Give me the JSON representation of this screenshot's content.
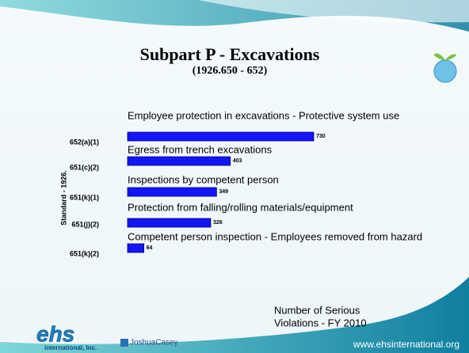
{
  "chart_data": {
    "type": "bar",
    "orientation": "horizontal",
    "title": "Subpart P - Excavations",
    "subtitle": "(1926.650 - 652)",
    "y_axis_label": "Standard - 1926.",
    "categories": [
      "652(a)(1)",
      "651(c)(2)",
      "651(k)(1)",
      "651(j)(2)",
      "651(k)(2)"
    ],
    "descriptions": [
      "Employee protection in excavations - Protective system use",
      "Egress from trench excavations",
      "Inspections by competent person",
      "Protection from falling/rolling materials/equipment",
      "Competent person inspection - Employees removed from hazard"
    ],
    "values": [
      730,
      403,
      349,
      326,
      64
    ],
    "color": "#1414ff",
    "note": [
      "Number of Serious",
      "Violations - FY 2010"
    ]
  },
  "footer": {
    "website": "www.ehsinternational.org",
    "logo_left": "ehs",
    "logo_left_sub": "international, Inc.",
    "logo_right": "JoshuaCasey"
  }
}
